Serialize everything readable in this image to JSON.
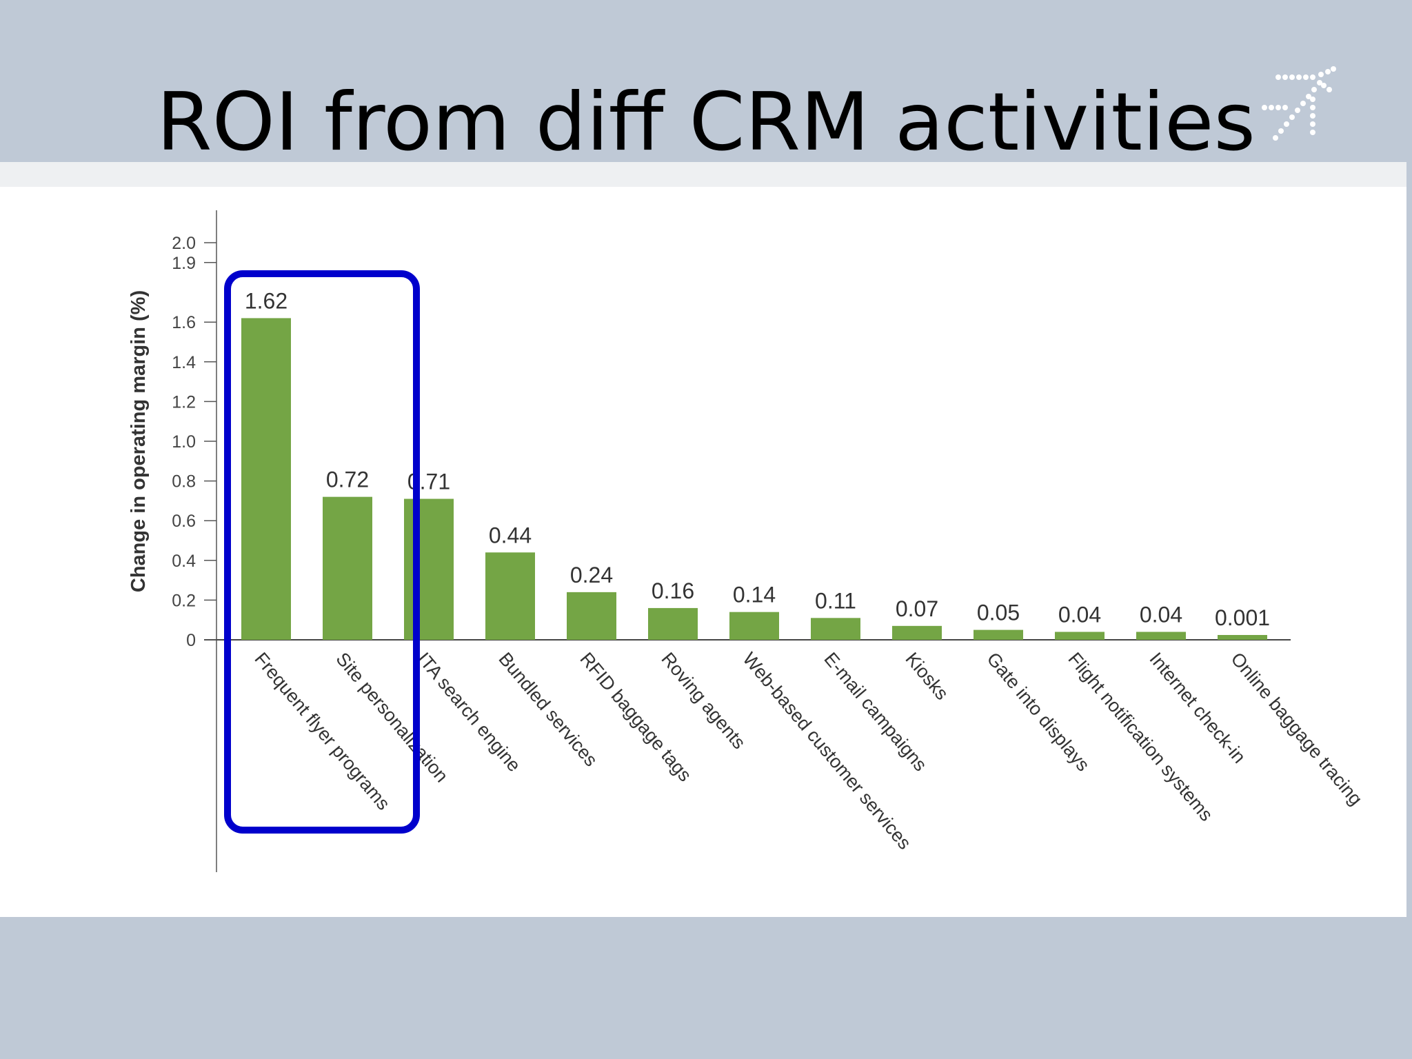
{
  "slide": {
    "title": "ROI from diff CRM activities",
    "logo_icon": "airplane-dots-icon"
  },
  "colors": {
    "background": "#bfc9d6",
    "panel": "#ffffff",
    "bar": "#74a545",
    "highlight": "#0000cc",
    "logo": "#ffffff"
  },
  "chart_data": {
    "type": "bar",
    "ylabel": "Change in operating margin (%)",
    "xlabel": "",
    "ylim": [
      0,
      2.0
    ],
    "yticks": [
      "0",
      "0.2",
      "0.4",
      "0.6",
      "0.8",
      "1.0",
      "1.2",
      "1.4",
      "1.6",
      "1.9",
      "2.0"
    ],
    "categories": [
      "Frequent flyer programs",
      "Site personalization",
      "ITA search engine",
      "Bundled services",
      "RFID baggage tags",
      "Roving agents",
      "Web-based customer services",
      "E-mail campaigns",
      "Kiosks",
      "Gate into displays",
      "Flight notification systems",
      "Internet check-in",
      "Online baggage tracing"
    ],
    "values": [
      1.62,
      0.72,
      0.71,
      0.44,
      0.24,
      0.16,
      0.14,
      0.11,
      0.07,
      0.05,
      0.04,
      0.04,
      0.001
    ],
    "value_labels": [
      "1.62",
      "0.72",
      "0.71",
      "0.44",
      "0.24",
      "0.16",
      "0.14",
      "0.11",
      "0.07",
      "0.05",
      "0.04",
      "0.04",
      "0.001"
    ],
    "grid": false,
    "highlight": {
      "shape": "rounded-rectangle",
      "covers_categories": [
        "Frequent flyer programs",
        "Site personalization"
      ]
    }
  }
}
